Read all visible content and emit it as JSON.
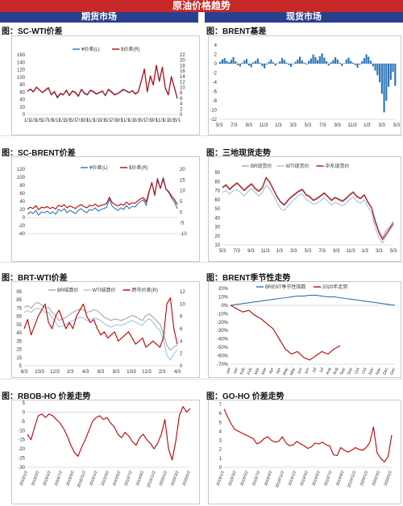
{
  "header": {
    "title": "原油价格趋势",
    "left": "期货市场",
    "right": "现货市场"
  },
  "colors": {
    "red": "#c00000",
    "blue": "#2e75b6",
    "gray": "#a6a6a6",
    "lightblue": "#9dc3e6",
    "bar": "#2e75b6",
    "darkblue": "#1f4e79"
  },
  "chart_data": [
    {
      "id": "c1",
      "title": "图：SC-WTI价差",
      "type": "line",
      "legend": [
        "¥价差(L)",
        "$价差(R)"
      ],
      "yticks": [
        "0",
        "20",
        "40",
        "60",
        "80",
        "100",
        "120",
        "140",
        "160"
      ],
      "y2ticks": [
        "0",
        "2",
        "4",
        "6",
        "8",
        "10",
        "12",
        "14",
        "16",
        "18",
        "20",
        "22"
      ],
      "xticks": [
        "1/1",
        "1/3",
        "1/5",
        "1/7",
        "1/9",
        "1/11",
        "1/1",
        "3/1",
        "5/1",
        "7/1",
        "9/1",
        "11/1",
        "1/1",
        "3/1",
        "5/1",
        "7/1",
        "9/1",
        "11/1",
        "1/1",
        "3/1",
        "5/1",
        "7/1",
        "9/1",
        "11/1",
        "1/1",
        "3/1",
        "5/1"
      ],
      "ylim": [
        0,
        160
      ],
      "series": [
        {
          "name": "¥价差(L)",
          "values": [
            62,
            67,
            60,
            72,
            66,
            58,
            64,
            70,
            52,
            60,
            44,
            55,
            52,
            64,
            50,
            62,
            58,
            48,
            66,
            56,
            52,
            64,
            60,
            54,
            58,
            62,
            50,
            66,
            60,
            52,
            55,
            60,
            66,
            62,
            58,
            63,
            54,
            60,
            90,
            120,
            60,
            102,
            78,
            130,
            88,
            125,
            70,
            52,
            100,
            72,
            42
          ]
        },
        {
          "name": "$价差(R)",
          "values": [
            8.6,
            9.4,
            8.4,
            10.1,
            9.1,
            8.1,
            9.0,
            9.9,
            7.3,
            8.5,
            6.3,
            7.8,
            7.3,
            9.0,
            7.0,
            8.7,
            8.2,
            6.8,
            9.3,
            7.9,
            7.3,
            9.0,
            8.5,
            7.6,
            8.1,
            8.7,
            7.0,
            9.3,
            8.4,
            7.3,
            7.7,
            8.4,
            9.3,
            8.7,
            8.1,
            8.8,
            7.6,
            8.4,
            12.6,
            16.8,
            8.4,
            14.3,
            11.0,
            18.2,
            12.3,
            17.5,
            9.8,
            7.3,
            14.0,
            10.1,
            5.9
          ]
        }
      ]
    },
    {
      "id": "c2",
      "title": "图：BRENT基差",
      "type": "bar",
      "yticks": [
        "-12",
        "-10",
        "-8",
        "-6",
        "-4",
        "-2",
        "0",
        "2",
        "4"
      ],
      "xticks": [
        "5/3",
        "7/3",
        "9/3",
        "11/3",
        "1/3",
        "3/3",
        "5/3",
        "7/3",
        "9/3",
        "11/3",
        "1/3",
        "3/3",
        "5/3"
      ],
      "ylim": [
        -12,
        4
      ],
      "series": [
        {
          "name": "基差",
          "values": [
            0.4,
            0.9,
            1.2,
            0.6,
            0.3,
            0.8,
            1.4,
            0.5,
            -0.3,
            -0.6,
            0.2,
            0.7,
            1.0,
            -0.4,
            -0.8,
            0.3,
            0.6,
            1.1,
            0.2,
            -0.5,
            -1.0,
            -0.2,
            0.4,
            0.9,
            0.3,
            -0.4,
            0.1,
            0.5,
            1.2,
            0.8,
            0.2,
            -0.3,
            -0.7,
            -0.1,
            0.4,
            0.9,
            1.5,
            0.7,
            0.2,
            -0.2,
            0.6,
            1.1,
            2.0,
            1.4,
            0.8,
            1.6,
            2.2,
            1.3,
            0.5,
            -0.4,
            0.3,
            0.8,
            1.4,
            0.9,
            0.2,
            -0.5,
            0.1,
            0.9,
            1.3,
            0.6,
            0.2,
            -0.3,
            -0.9,
            -0.2,
            0.5,
            1.2,
            2.0,
            1.5,
            0.6,
            -0.6,
            -1.5,
            -2.5,
            -4.0,
            -6.5,
            -10.5,
            -8.0,
            -5.0,
            -3.5,
            -1.8,
            -4.8
          ]
        }
      ]
    },
    {
      "id": "c3",
      "title": "图：SC-BRENT价差",
      "type": "line",
      "legend": [
        "¥价差(L)",
        "$价差(R)"
      ],
      "yticks": [
        "-40",
        "-20",
        "0",
        "20",
        "40",
        "60",
        "80",
        "100",
        "120"
      ],
      "y2ticks": [
        "-10",
        "-5",
        "0",
        "5",
        "10",
        "15",
        "20"
      ],
      "ylim": [
        -40,
        120
      ],
      "series": [
        {
          "name": "¥价差(L)",
          "values": [
            8,
            14,
            10,
            18,
            6,
            14,
            12,
            16,
            10,
            14,
            8,
            20,
            16,
            22,
            12,
            18,
            14,
            10,
            18,
            22,
            16,
            12,
            20,
            18,
            24,
            16,
            20,
            22,
            26,
            45,
            28,
            22,
            18,
            24,
            20,
            30,
            22,
            28,
            26,
            34,
            40,
            44,
            30,
            62,
            88,
            54,
            98,
            72,
            100,
            70,
            62,
            48,
            38,
            22
          ]
        },
        {
          "name": "$价差(R)",
          "values": [
            1.4,
            2.3,
            1.7,
            3.0,
            1.1,
            2.3,
            2.0,
            2.6,
            1.7,
            2.3,
            1.4,
            3.2,
            2.6,
            3.5,
            2.0,
            2.9,
            2.3,
            1.7,
            2.9,
            3.5,
            2.6,
            2.0,
            3.2,
            2.9,
            3.8,
            2.6,
            3.2,
            3.5,
            4.1,
            7.0,
            4.4,
            3.5,
            2.9,
            3.8,
            3.2,
            4.7,
            3.5,
            4.4,
            4.1,
            5.3,
            6.2,
            6.8,
            4.7,
            9.6,
            13.5,
            8.3,
            15.0,
            11.0,
            15.3,
            10.7,
            9.5,
            7.4,
            5.9,
            3.5
          ]
        }
      ]
    },
    {
      "id": "c4",
      "title": "图：三地现货走势",
      "type": "line",
      "legend": [
        "BR现货价",
        "WTI现货价",
        "中东现货价"
      ],
      "yticks": [
        "10",
        "20",
        "30",
        "40",
        "50",
        "60",
        "70",
        "80",
        "90"
      ],
      "xticks": [
        "5/3",
        "7/3",
        "9/3",
        "11/3",
        "1/3",
        "3/3",
        "5/3",
        "7/3",
        "9/3",
        "11/3",
        "1/3",
        "3/3",
        "5/3"
      ],
      "ylim": [
        10,
        90
      ],
      "series": [
        {
          "name": "BR现货价",
          "values": [
            74,
            77,
            72,
            76,
            79,
            75,
            71,
            75,
            78,
            73,
            70,
            74,
            85,
            80,
            72,
            64,
            58,
            55,
            60,
            64,
            67,
            70,
            72,
            66,
            64,
            60,
            62,
            65,
            68,
            64,
            60,
            63,
            61,
            59,
            62,
            66,
            69,
            64,
            62,
            66,
            58,
            52,
            38,
            26,
            18,
            26,
            30,
            36
          ]
        },
        {
          "name": "WTI现货价",
          "values": [
            68,
            70,
            66,
            70,
            71,
            68,
            64,
            69,
            72,
            68,
            64,
            68,
            76,
            72,
            65,
            57,
            50,
            48,
            53,
            57,
            61,
            65,
            66,
            60,
            58,
            55,
            56,
            59,
            62,
            58,
            54,
            57,
            55,
            53,
            56,
            60,
            63,
            58,
            56,
            60,
            52,
            46,
            30,
            18,
            12,
            20,
            26,
            32
          ]
        },
        {
          "name": "中东现货价",
          "values": [
            73,
            76,
            71,
            75,
            78,
            74,
            70,
            74,
            77,
            72,
            69,
            73,
            84,
            79,
            71,
            63,
            57,
            54,
            59,
            63,
            66,
            69,
            71,
            65,
            63,
            59,
            61,
            64,
            67,
            63,
            59,
            62,
            60,
            58,
            61,
            65,
            68,
            63,
            61,
            65,
            57,
            51,
            36,
            24,
            16,
            22,
            28,
            34
          ]
        }
      ]
    },
    {
      "id": "c5",
      "title": "图：BRT-WTI价差",
      "type": "line",
      "legend": [
        "BR结算价",
        "WTI结算价",
        "跨市价差(R)"
      ],
      "yticks": [
        "5",
        "15",
        "25",
        "35",
        "45",
        "55",
        "65",
        "75",
        "85",
        "95"
      ],
      "y2ticks": [
        "0",
        "2",
        "4",
        "6",
        "8",
        "10",
        "12"
      ],
      "xticks": [
        "8/3",
        "10/3",
        "12/3",
        "2/3",
        "4/3",
        "6/3",
        "8/3",
        "10/3",
        "12/3",
        "2/3",
        "4/3"
      ],
      "ylim": [
        5,
        95
      ],
      "series": [
        {
          "name": "BR结算价",
          "values": [
            76,
            78,
            75,
            80,
            82,
            79,
            75,
            76,
            70,
            66,
            60,
            62,
            64,
            67,
            70,
            72,
            74,
            73,
            70,
            71,
            73,
            72,
            68,
            64,
            62,
            60,
            62,
            61,
            60,
            62,
            64,
            66,
            65,
            62,
            60,
            66,
            68,
            64,
            60,
            56,
            44,
            30,
            24,
            28,
            30
          ]
        },
        {
          "name": "WTI结算价",
          "values": [
            70,
            72,
            70,
            74,
            75,
            73,
            70,
            70,
            64,
            58,
            52,
            53,
            55,
            58,
            60,
            62,
            64,
            63,
            60,
            61,
            63,
            62,
            60,
            56,
            54,
            52,
            54,
            55,
            54,
            56,
            58,
            60,
            58,
            56,
            54,
            60,
            62,
            58,
            52,
            48,
            36,
            18,
            12,
            20,
            24
          ]
        },
        {
          "name": "跨市价差(R)",
          "values": [
            6,
            7.5,
            5,
            6.5,
            8,
            9,
            10,
            7,
            6,
            8,
            9,
            7.5,
            6,
            7,
            6,
            8,
            9,
            10,
            8,
            7,
            7.5,
            6,
            5,
            5.5,
            4.5,
            5,
            5.5,
            4,
            4.5,
            5,
            5.5,
            4.5,
            3.5,
            4,
            4.5,
            3,
            3.5,
            4,
            3.5,
            3,
            4.5,
            10,
            11,
            6,
            3.5
          ]
        }
      ]
    },
    {
      "id": "c6",
      "title": "图：BRENT季节性走势",
      "type": "line",
      "legend": [
        "BRENT季节性指数",
        "2020年走势"
      ],
      "yticks": [
        "-70%",
        "-60%",
        "-50%",
        "-40%",
        "-30%",
        "-20%",
        "-10%",
        "0%",
        "10%",
        "20%"
      ],
      "xticks": [
        "Jan",
        "Jan",
        "Feb",
        "Feb",
        "Mar",
        "Mar",
        "Apr",
        "Apr",
        "May",
        "May",
        "Jun",
        "Jun",
        "Jul",
        "Jul",
        "Aug",
        "Aug",
        "Sep",
        "Sep",
        "Oct",
        "Oct",
        "Nov",
        "Nov",
        "Dec",
        "Dec"
      ],
      "ylim": [
        -70,
        20
      ],
      "series": [
        {
          "name": "BRENT季节性指数",
          "values": [
            0,
            1,
            2,
            3,
            4,
            5,
            6,
            7,
            8,
            9,
            10,
            11,
            11,
            12,
            12,
            11,
            10,
            10,
            9,
            8,
            7,
            6,
            5,
            4,
            3,
            2,
            1,
            0
          ]
        },
        {
          "name": "2020年走势",
          "values": [
            0,
            -4,
            -8,
            -6,
            -12,
            -16,
            -22,
            -28,
            -40,
            -52,
            -58,
            -55,
            -62,
            -65,
            -60,
            -55,
            -58,
            -52,
            -48
          ]
        }
      ]
    },
    {
      "id": "c7",
      "title": "图：RBOB-HO 价差走势",
      "type": "line",
      "yticks": [
        "-30",
        "-25",
        "-20",
        "-15",
        "-10",
        "-5",
        "0",
        "5"
      ],
      "xticks": [
        "2018/1/2",
        "2018/3/2",
        "2018/5/2",
        "2018/7/2",
        "2018/9/2",
        "2018/11/2",
        "2019/1/2",
        "2019/3/2",
        "2019/5/2",
        "2019/7/2",
        "2019/9/2",
        "2019/11/2",
        "2020/1/2",
        "2020/3/2",
        "2020/5/2"
      ],
      "ylim": [
        -30,
        5
      ],
      "series": [
        {
          "name": "价差",
          "values": [
            -12,
            -15,
            -8,
            -2,
            -1,
            -3,
            -1,
            -2,
            -4,
            -6,
            -9,
            -13,
            -18,
            -22,
            -24,
            -19,
            -15,
            -10,
            -5,
            -3,
            -2,
            -4,
            -3,
            -6,
            -8,
            -12,
            -14,
            -11,
            -13,
            -16,
            -18,
            -14,
            -12,
            -15,
            -17,
            -20,
            -17,
            -12,
            -4,
            -20,
            -26,
            -16,
            -2,
            3,
            0,
            2
          ]
        }
      ]
    },
    {
      "id": "c8",
      "title": "图：GO-HO 价差走势",
      "type": "line",
      "yticks": [
        "0",
        "1",
        "2",
        "3",
        "4",
        "5",
        "6",
        "7"
      ],
      "xticks": [
        "2018/1/2",
        "2018/3/2",
        "2018/5/2",
        "2018/7/2",
        "2018/9/2",
        "2018/11/2",
        "2019/1/2",
        "2019/3/2",
        "2019/5/2",
        "2019/7/2",
        "2019/9/2",
        "2019/11/2",
        "2020/1/2",
        "2020/3/2",
        "2020/5/2"
      ],
      "ylim": [
        0,
        7
      ],
      "series": [
        {
          "name": "价差",
          "values": [
            6.5,
            5.6,
            4.8,
            4.2,
            4.0,
            3.8,
            3.6,
            3.4,
            3.2,
            2.6,
            2.8,
            3.2,
            3.4,
            3.0,
            2.8,
            2.9,
            3.4,
            2.7,
            2.4,
            2.5,
            2.9,
            2.6,
            2.4,
            2.1,
            2.3,
            2.7,
            2.6,
            2.8,
            2.5,
            2.4,
            1.4,
            1.3,
            2.2,
            1.9,
            1.7,
            1.9,
            2.2,
            2.0,
            1.9,
            2.2,
            2.8,
            4.5,
            1.6,
            1.0,
            0.6,
            1.2,
            3.6
          ]
        }
      ]
    }
  ]
}
